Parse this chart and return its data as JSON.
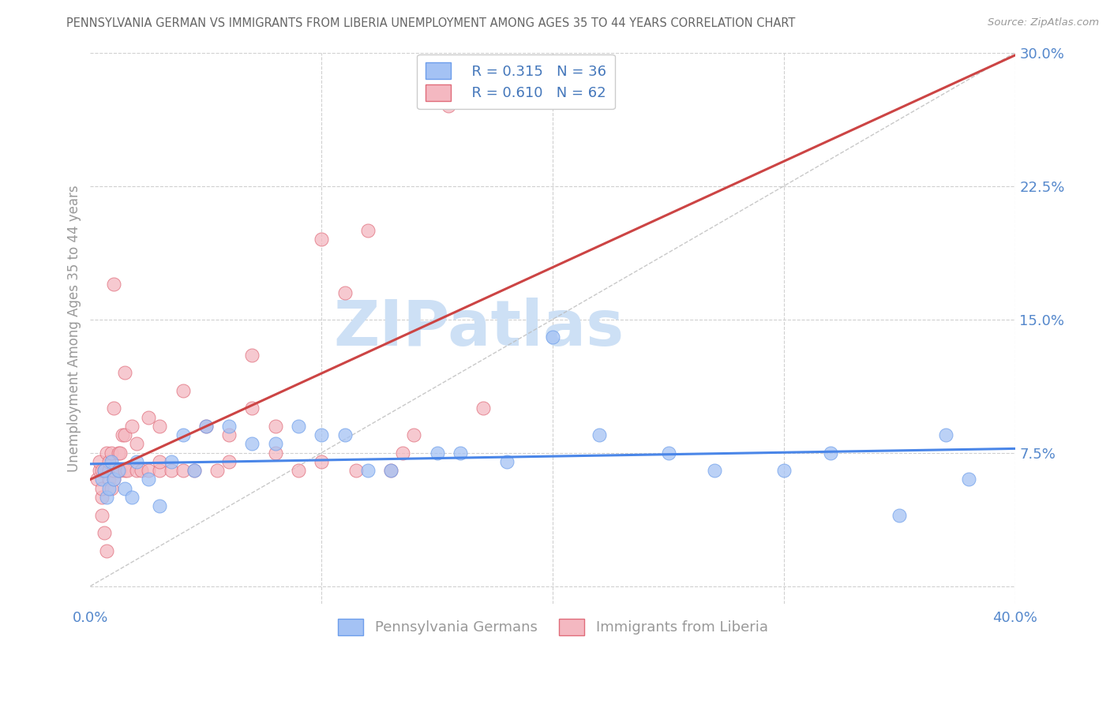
{
  "title": "PENNSYLVANIA GERMAN VS IMMIGRANTS FROM LIBERIA UNEMPLOYMENT AMONG AGES 35 TO 44 YEARS CORRELATION CHART",
  "source": "Source: ZipAtlas.com",
  "ylabel": "Unemployment Among Ages 35 to 44 years",
  "xlim": [
    0.0,
    0.4
  ],
  "ylim": [
    -0.01,
    0.3
  ],
  "yticks_right": [
    0.0,
    0.075,
    0.15,
    0.225,
    0.3
  ],
  "yticklabels_right": [
    "",
    "7.5%",
    "15.0%",
    "22.5%",
    "30.0%"
  ],
  "blue_color": "#a4c2f4",
  "pink_color": "#f4b8c1",
  "blue_edge_color": "#6d9eeb",
  "pink_edge_color": "#e06c7a",
  "blue_line_color": "#4a86e8",
  "pink_line_color": "#cc4444",
  "legend_label_blue": "Pennsylvania Germans",
  "legend_label_pink": "Immigrants from Liberia",
  "legend_R_blue": "R = 0.315",
  "legend_N_blue": "N = 36",
  "legend_R_pink": "R = 0.610",
  "legend_N_pink": "N = 62",
  "blue_scatter_x": [
    0.005,
    0.006,
    0.007,
    0.008,
    0.009,
    0.01,
    0.012,
    0.015,
    0.018,
    0.02,
    0.025,
    0.03,
    0.035,
    0.04,
    0.045,
    0.05,
    0.06,
    0.07,
    0.08,
    0.09,
    0.1,
    0.11,
    0.12,
    0.13,
    0.15,
    0.16,
    0.18,
    0.2,
    0.22,
    0.25,
    0.27,
    0.3,
    0.32,
    0.35,
    0.37,
    0.38
  ],
  "blue_scatter_y": [
    0.06,
    0.065,
    0.05,
    0.055,
    0.07,
    0.06,
    0.065,
    0.055,
    0.05,
    0.07,
    0.06,
    0.045,
    0.07,
    0.085,
    0.065,
    0.09,
    0.09,
    0.08,
    0.08,
    0.09,
    0.085,
    0.085,
    0.065,
    0.065,
    0.075,
    0.075,
    0.07,
    0.14,
    0.085,
    0.075,
    0.065,
    0.065,
    0.075,
    0.04,
    0.085,
    0.06
  ],
  "pink_scatter_x": [
    0.003,
    0.004,
    0.004,
    0.005,
    0.005,
    0.005,
    0.005,
    0.006,
    0.006,
    0.007,
    0.007,
    0.008,
    0.008,
    0.008,
    0.009,
    0.009,
    0.01,
    0.01,
    0.01,
    0.01,
    0.012,
    0.012,
    0.013,
    0.013,
    0.014,
    0.015,
    0.015,
    0.015,
    0.016,
    0.018,
    0.02,
    0.02,
    0.022,
    0.025,
    0.025,
    0.03,
    0.03,
    0.03,
    0.035,
    0.04,
    0.04,
    0.045,
    0.05,
    0.055,
    0.06,
    0.06,
    0.07,
    0.07,
    0.08,
    0.08,
    0.09,
    0.1,
    0.1,
    0.11,
    0.115,
    0.12,
    0.13,
    0.135,
    0.14,
    0.155,
    0.17,
    0.19
  ],
  "pink_scatter_y": [
    0.06,
    0.065,
    0.07,
    0.05,
    0.055,
    0.065,
    0.04,
    0.03,
    0.065,
    0.02,
    0.075,
    0.06,
    0.065,
    0.07,
    0.055,
    0.075,
    0.06,
    0.065,
    0.1,
    0.17,
    0.065,
    0.075,
    0.065,
    0.075,
    0.085,
    0.065,
    0.085,
    0.12,
    0.065,
    0.09,
    0.065,
    0.08,
    0.065,
    0.095,
    0.065,
    0.065,
    0.07,
    0.09,
    0.065,
    0.065,
    0.11,
    0.065,
    0.09,
    0.065,
    0.07,
    0.085,
    0.1,
    0.13,
    0.075,
    0.09,
    0.065,
    0.07,
    0.195,
    0.165,
    0.065,
    0.2,
    0.065,
    0.075,
    0.085,
    0.27,
    0.1,
    0.28
  ],
  "watermark_text": "ZIPatlas",
  "watermark_color": "#cde0f5",
  "background_color": "#ffffff",
  "grid_color": "#d0d0d0",
  "title_color": "#666666",
  "ylabel_color": "#999999",
  "tick_color": "#5588cc",
  "legend_text_color": "#4477bb"
}
